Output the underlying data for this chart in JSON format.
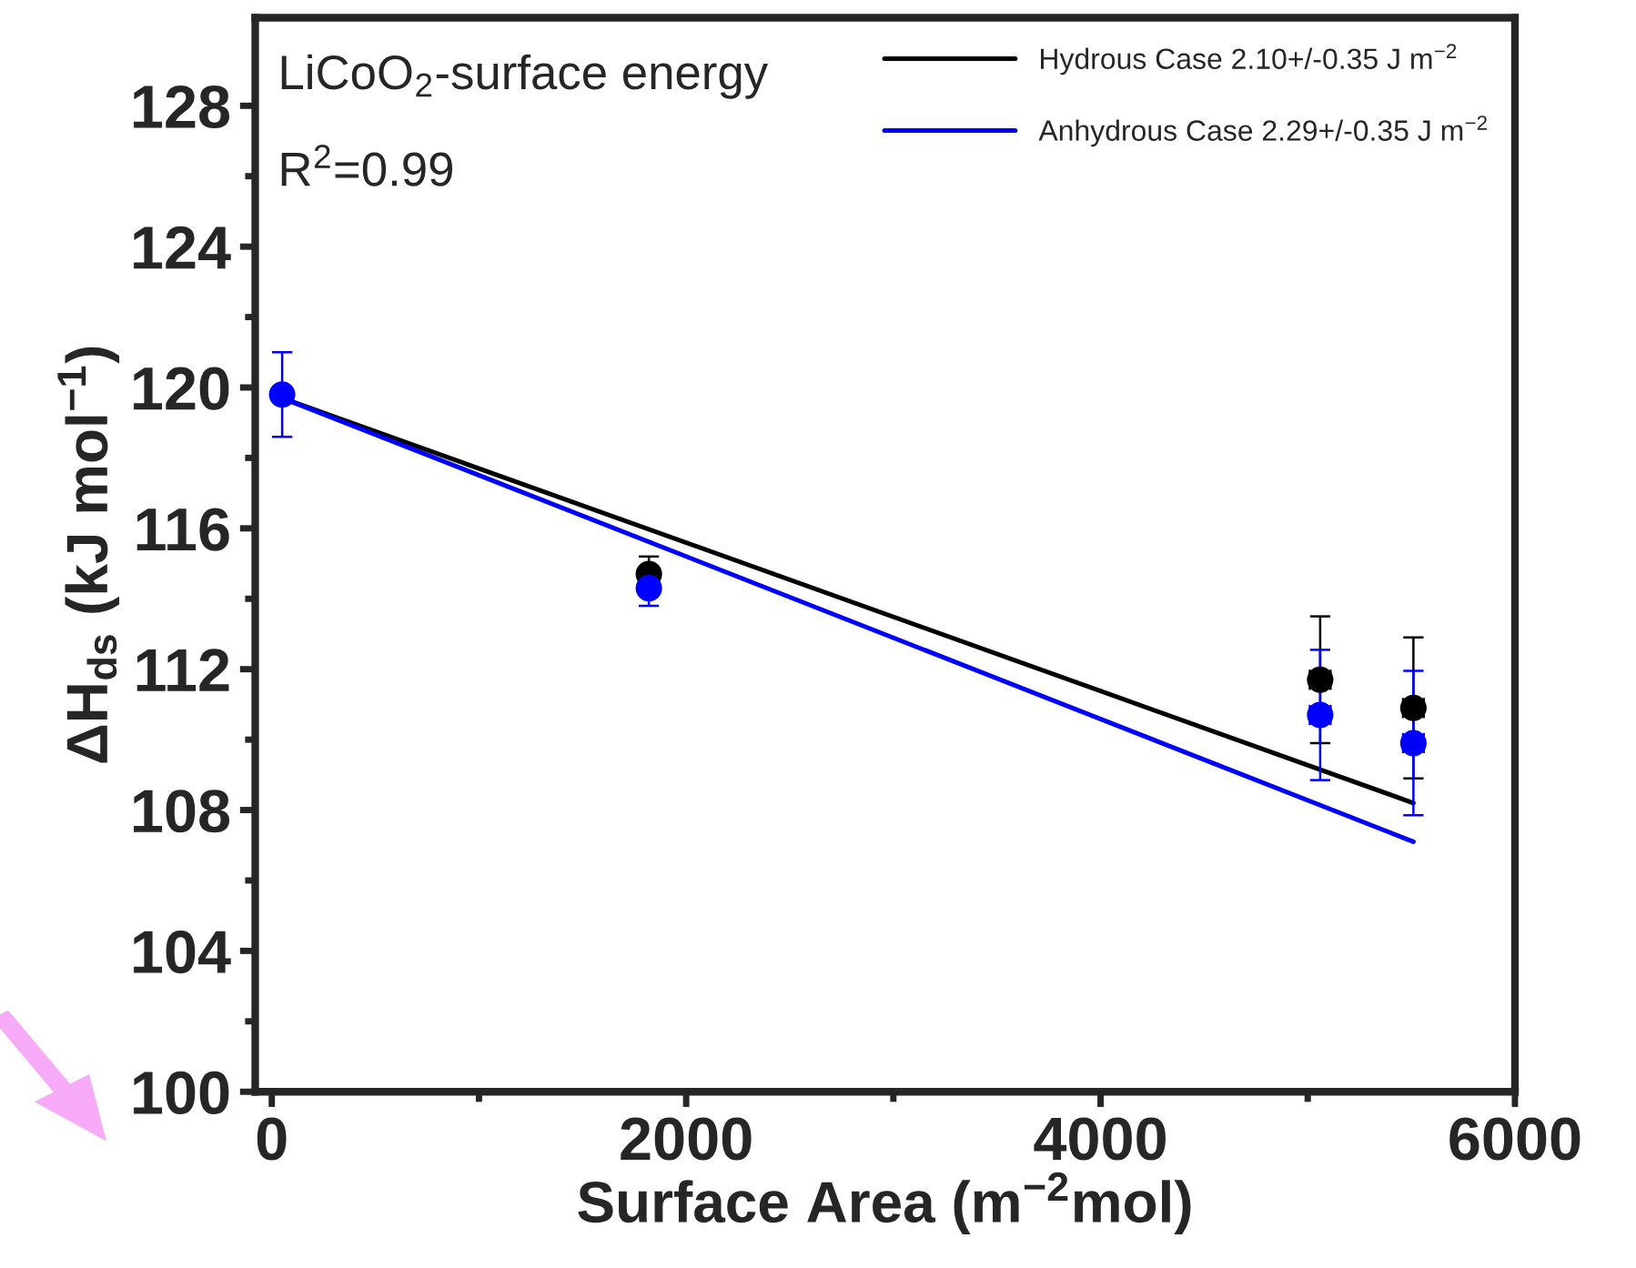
{
  "chart_data": {
    "type": "scatter",
    "xlabel": "Surface Area (m$^{−2}$mol)",
    "ylabel": "ΔH$_{ds}$ (kJ mol$^{−1}$)",
    "annotations": [
      "LiCoO$_{2}$-surface energy",
      "R$^{2}$=0.99"
    ],
    "xlim": [
      -80,
      6000
    ],
    "xticks": [
      0,
      2000,
      4000,
      6000
    ],
    "ylim": [
      100,
      130.5
    ],
    "yticks": [
      100,
      104,
      108,
      112,
      116,
      120,
      124,
      128
    ],
    "grid": false,
    "legend": "top right",
    "series": [
      {
        "type": "line",
        "name": "Hydrous Case 2.10+/-0.35 J m$^{−2}$",
        "color": "#000000",
        "x": [
          50,
          5510
        ],
        "values": [
          119.7,
          108.2
        ]
      },
      {
        "type": "line",
        "name": "Anhydrous Case 2.29+/-0.35 J m$^{−2}$",
        "color": "#0000ff",
        "x": [
          50,
          5510
        ],
        "values": [
          119.7,
          107.1
        ]
      },
      {
        "marker": "circle",
        "color": "#000000",
        "x": [
          1820,
          5060,
          5510
        ],
        "values": [
          114.7,
          111.7,
          110.9
        ],
        "errors": [
          0.5,
          1.8,
          2.0
        ],
        "xerrors": [
          null,
          50,
          50
        ]
      },
      {
        "marker": "circle",
        "color": "#0000ff",
        "x": [
          50,
          1820,
          5060,
          5510
        ],
        "values": [
          119.8,
          114.3,
          110.7,
          109.9
        ],
        "errors": [
          1.2,
          0.5,
          1.85,
          2.05
        ],
        "xerrors": [
          null,
          null,
          50,
          50
        ]
      }
    ]
  }
}
